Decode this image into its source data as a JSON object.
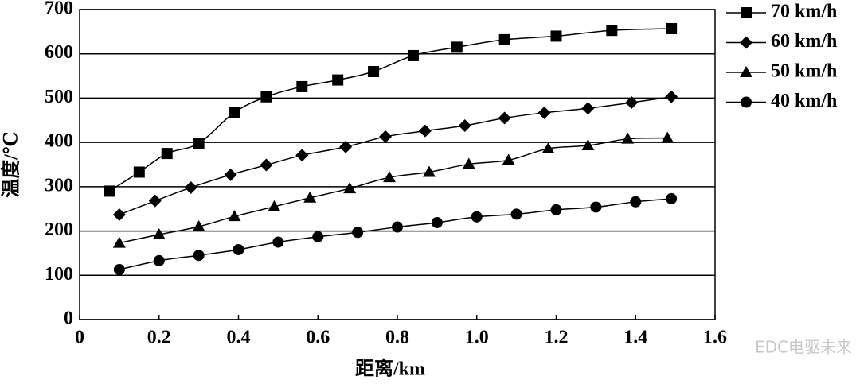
{
  "chart_data": {
    "type": "line",
    "xlabel": "距离/km",
    "ylabel": "温度/℃",
    "xlim": [
      0,
      1.6
    ],
    "ylim": [
      0,
      700
    ],
    "xticks": [
      0,
      0.2,
      0.4,
      0.6,
      0.8,
      {
        "value": 1,
        "label": "1.0"
      },
      1.2,
      1.4,
      1.6
    ],
    "yticks": [
      0,
      100,
      200,
      300,
      400,
      500,
      600,
      700
    ],
    "grid": true,
    "legend": "outside-right",
    "color": "#000000",
    "watermark": "EDC电驱未来",
    "series": [
      {
        "name": "70 km/h",
        "marker": "square",
        "x": [
          0.075,
          0.15,
          0.22,
          0.3,
          0.39,
          0.47,
          0.56,
          0.65,
          0.74,
          0.84,
          0.95,
          1.07,
          1.2,
          1.34,
          1.49
        ],
        "values": [
          290,
          333,
          375,
          398,
          468,
          503,
          526,
          541,
          560,
          596,
          615,
          632,
          640,
          653,
          657
        ]
      },
      {
        "name": "60 km/h",
        "marker": "diamond",
        "x": [
          0.1,
          0.19,
          0.28,
          0.38,
          0.47,
          0.56,
          0.67,
          0.77,
          0.87,
          0.97,
          1.07,
          1.17,
          1.28,
          1.39,
          1.49
        ],
        "values": [
          237,
          268,
          298,
          327,
          349,
          371,
          390,
          413,
          426,
          438,
          455,
          467,
          477,
          490,
          503
        ]
      },
      {
        "name": "50 km/h",
        "marker": "triangle",
        "x": [
          0.1,
          0.2,
          0.3,
          0.39,
          0.49,
          0.58,
          0.68,
          0.78,
          0.88,
          0.98,
          1.08,
          1.18,
          1.28,
          1.38,
          1.48
        ],
        "values": [
          173,
          192,
          210,
          233,
          255,
          275,
          296,
          321,
          333,
          351,
          360,
          386,
          393,
          408,
          410
        ]
      },
      {
        "name": "40 km/h",
        "marker": "circle",
        "x": [
          0.1,
          0.2,
          0.3,
          0.4,
          0.5,
          0.6,
          0.7,
          0.8,
          0.9,
          1.0,
          1.1,
          1.2,
          1.3,
          1.4,
          1.49
        ],
        "values": [
          113,
          133,
          145,
          158,
          175,
          187,
          197,
          209,
          219,
          232,
          238,
          248,
          254,
          266,
          273
        ]
      }
    ]
  }
}
